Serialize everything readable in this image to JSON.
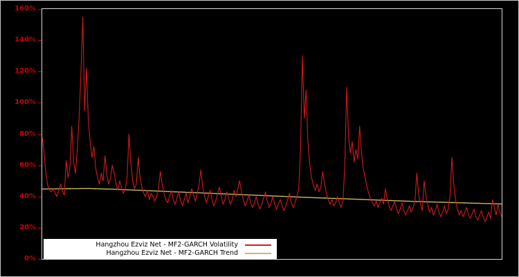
{
  "figure": {
    "background_color": "#000000",
    "frame_color": "#d9d9d9",
    "axis_label_color": "#cc0000"
  },
  "chart_data": {
    "type": "line",
    "title": "",
    "xlabel": "",
    "ylabel": "",
    "ylim": [
      0,
      160
    ],
    "yticks": [
      "0%",
      "20%",
      "40%",
      "60%",
      "80%",
      "100%",
      "120%",
      "140%",
      "160%"
    ],
    "x_tick_labels": [],
    "grid": false,
    "legend_position": "bottom-left",
    "series": [
      {
        "name": "Hangzhou Ezviz Net - MF2-GARCH Volatility",
        "color": "#d41b1b",
        "unit": "percent",
        "values": [
          78,
          68,
          55,
          47,
          44,
          43,
          45,
          42,
          40,
          44,
          48,
          43,
          41,
          63,
          52,
          58,
          85,
          62,
          55,
          70,
          90,
          120,
          155,
          95,
          122,
          88,
          75,
          65,
          72,
          58,
          52,
          48,
          55,
          50,
          66,
          54,
          48,
          52,
          60,
          55,
          48,
          44,
          50,
          46,
          42,
          45,
          52,
          80,
          62,
          50,
          45,
          48,
          65,
          52,
          46,
          42,
          40,
          44,
          38,
          42,
          40,
          37,
          40,
          45,
          56,
          48,
          42,
          38,
          36,
          40,
          44,
          38,
          35,
          39,
          43,
          37,
          34,
          38,
          42,
          36,
          40,
          45,
          41,
          37,
          42,
          48,
          57,
          46,
          40,
          36,
          40,
          44,
          38,
          34,
          37,
          42,
          46,
          40,
          35,
          38,
          43,
          39,
          35,
          38,
          44,
          40,
          45,
          50,
          43,
          38,
          34,
          37,
          41,
          36,
          33,
          36,
          40,
          35,
          32,
          35,
          39,
          43,
          37,
          33,
          36,
          40,
          35,
          32,
          35,
          38,
          34,
          31,
          34,
          38,
          42,
          36,
          33,
          36,
          40,
          45,
          70,
          130,
          90,
          108,
          75,
          60,
          52,
          47,
          44,
          48,
          43,
          46,
          56,
          48,
          42,
          38,
          35,
          38,
          34,
          36,
          40,
          36,
          33,
          38,
          60,
          110,
          78,
          68,
          75,
          62,
          70,
          64,
          85,
          68,
          58,
          52,
          46,
          42,
          38,
          36,
          34,
          37,
          33,
          36,
          39,
          35,
          45,
          38,
          34,
          31,
          34,
          37,
          32,
          29,
          32,
          36,
          31,
          28,
          31,
          34,
          30,
          33,
          37,
          55,
          42,
          35,
          31,
          50,
          40,
          34,
          30,
          33,
          28,
          31,
          35,
          30,
          27,
          30,
          34,
          29,
          32,
          40,
          65,
          48,
          38,
          32,
          28,
          31,
          27,
          30,
          33,
          28,
          26,
          29,
          32,
          27,
          25,
          28,
          31,
          27,
          24,
          27,
          30,
          26,
          38,
          33,
          28,
          35,
          30,
          27
        ]
      },
      {
        "name": "Hangzhou Ezviz Net - MF2-GARCH Trend",
        "color": "#c9b867",
        "unit": "percent",
        "anchor_points": [
          [
            0,
            44.8
          ],
          [
            15,
            45.0
          ],
          [
            25,
            45.1
          ],
          [
            40,
            44.6
          ],
          [
            60,
            43.6
          ],
          [
            80,
            42.6
          ],
          [
            100,
            41.6
          ],
          [
            120,
            40.6
          ],
          [
            140,
            39.6
          ],
          [
            160,
            38.7
          ],
          [
            180,
            37.8
          ],
          [
            200,
            36.9
          ],
          [
            220,
            36.2
          ],
          [
            235,
            35.7
          ],
          [
            249,
            35.2
          ]
        ]
      }
    ]
  }
}
